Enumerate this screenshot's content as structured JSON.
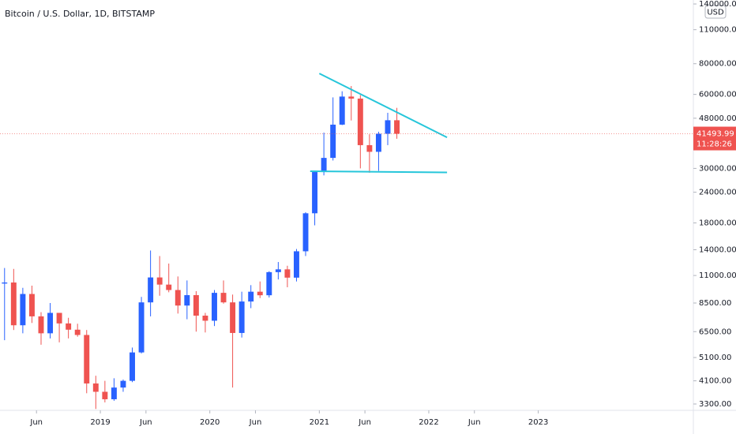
{
  "chart_data": {
    "type": "candlestick",
    "title": "Bitcoin / U.S. Dollar, 1D, BITSTAMP",
    "currency": "USD",
    "log_scale": true,
    "grid": false,
    "up_color": "#2962ff",
    "down_color": "#ef5350",
    "trendline_color": "#26c6da",
    "x": [
      "2018-02",
      "2018-03",
      "2018-04",
      "2018-05",
      "2018-06",
      "2018-07",
      "2018-08",
      "2018-09",
      "2018-10",
      "2018-11",
      "2018-12",
      "2019-01",
      "2019-02",
      "2019-03",
      "2019-04",
      "2019-05",
      "2019-06",
      "2019-07",
      "2019-08",
      "2019-09",
      "2019-10",
      "2019-11",
      "2019-12",
      "2020-01",
      "2020-02",
      "2020-03",
      "2020-04",
      "2020-05",
      "2020-06",
      "2020-07",
      "2020-08",
      "2020-09",
      "2020-10",
      "2020-11",
      "2020-12",
      "2021-01",
      "2021-02",
      "2021-03",
      "2021-04",
      "2021-05",
      "2021-06",
      "2021-07",
      "2021-08",
      "2021-09"
    ],
    "open": [
      10200,
      10300,
      6900,
      9250,
      7500,
      6400,
      7750,
      7020,
      6620,
      6300,
      4000,
      3700,
      3450,
      3850,
      4100,
      5350,
      8550,
      10800,
      10100,
      9600,
      8300,
      9150,
      7550,
      7200,
      9350,
      8550,
      6420,
      8620,
      9450,
      9140,
      11350,
      11650,
      10780,
      13800,
      19700,
      28990,
      33100,
      45200,
      58800,
      57700,
      37300,
      35040,
      41500,
      47100
    ],
    "high": [
      11800,
      11700,
      9800,
      10000,
      7800,
      8500,
      7750,
      7400,
      7000,
      6600,
      4300,
      4100,
      4200,
      4150,
      5600,
      9000,
      13900,
      13200,
      12300,
      10900,
      10500,
      9500,
      7750,
      9600,
      10500,
      9200,
      9450,
      10050,
      10400,
      11450,
      12480,
      12050,
      14100,
      19900,
      29300,
      41950,
      58350,
      61780,
      64900,
      59600,
      41300,
      42300,
      50500,
      52900
    ],
    "low": [
      6000,
      6600,
      6400,
      7050,
      5750,
      6100,
      5880,
      6100,
      6200,
      3650,
      3150,
      3350,
      3400,
      3700,
      4050,
      5300,
      7500,
      9100,
      9400,
      7700,
      7300,
      6500,
      6450,
      6850,
      8450,
      3850,
      6150,
      8100,
      8900,
      8950,
      10600,
      9850,
      10400,
      13200,
      17600,
      28100,
      32300,
      45000,
      47000,
      30000,
      28800,
      29300,
      37300,
      39600
    ],
    "close": [
      10300,
      6900,
      9250,
      7500,
      6400,
      7750,
      7020,
      6620,
      6300,
      4000,
      3700,
      3450,
      3850,
      4100,
      5350,
      8550,
      10800,
      10100,
      9600,
      8300,
      9150,
      7550,
      7200,
      9350,
      8550,
      6420,
      8620,
      9450,
      9140,
      11350,
      11650,
      10780,
      13800,
      19700,
      28990,
      33100,
      45200,
      58800,
      57700,
      37300,
      35040,
      41500,
      47100,
      41493.99
    ],
    "xlim": [
      "2018-02",
      "2024-06"
    ],
    "xticks": [
      {
        "value": "2018-06",
        "label": "Jun"
      },
      {
        "value": "2019-01",
        "label": "2019"
      },
      {
        "value": "2019-06",
        "label": "Jun"
      },
      {
        "value": "2020-01",
        "label": "2020"
      },
      {
        "value": "2020-06",
        "label": "Jun"
      },
      {
        "value": "2021-01",
        "label": "2021"
      },
      {
        "value": "2021-06",
        "label": "Jun"
      },
      {
        "value": "2022-01",
        "label": "2022"
      },
      {
        "value": "2022-06",
        "label": "Jun"
      },
      {
        "value": "2023-01",
        "label": "2023"
      }
    ],
    "ylim": [
      3110,
      145300
    ],
    "yticks": [
      {
        "value": 140000,
        "label": "140000.00"
      },
      {
        "value": 110000,
        "label": "110000.00"
      },
      {
        "value": 80000,
        "label": "80000.00"
      },
      {
        "value": 60000,
        "label": "60000.00"
      },
      {
        "value": 48000,
        "label": "48000.00"
      },
      {
        "value": 30000,
        "label": "30000.00"
      },
      {
        "value": 24000,
        "label": "24000.00"
      },
      {
        "value": 18000,
        "label": "18000.00"
      },
      {
        "value": 14000,
        "label": "14000.00"
      },
      {
        "value": 11000,
        "label": "11000.00"
      },
      {
        "value": 8500,
        "label": "8500.00"
      },
      {
        "value": 6500,
        "label": "6500.00"
      },
      {
        "value": 5100,
        "label": "5100.00"
      },
      {
        "value": 4100,
        "label": "4100.00"
      },
      {
        "value": 3300,
        "label": "3300.00"
      }
    ],
    "last_price": 41493.99,
    "countdown": "11:28:26",
    "trendlines": [
      {
        "x": [
          "2021-01",
          "2022-03"
        ],
        "y": [
          73000,
          40100
        ]
      },
      {
        "x": [
          "2020-12",
          "2022-03"
        ],
        "y": [
          29200,
          28900
        ]
      }
    ]
  }
}
